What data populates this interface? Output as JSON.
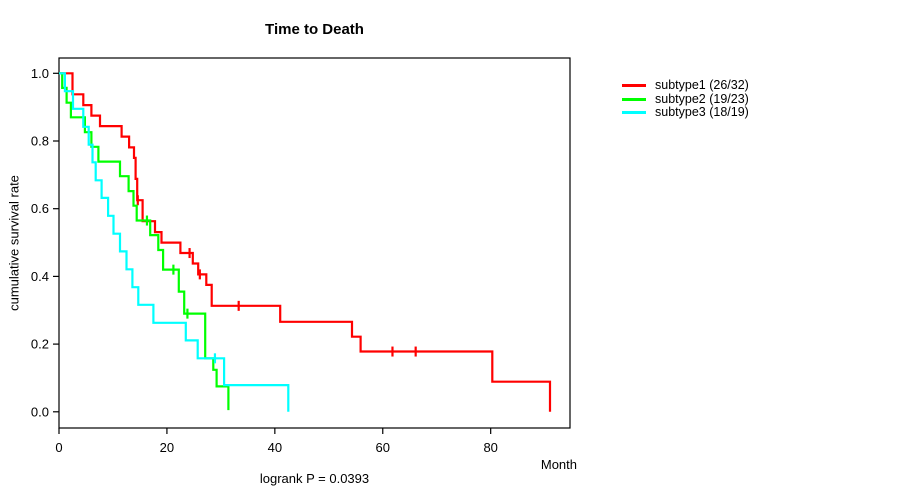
{
  "title": "Time to Death",
  "footnote": "logrank P = 0.0393",
  "axes": {
    "x": {
      "label": "Month",
      "ticks": [
        "0",
        "20",
        "40",
        "60",
        "80"
      ]
    },
    "y": {
      "label": "cumulative survival rate",
      "ticks": [
        "0.0",
        "0.2",
        "0.4",
        "0.6",
        "0.8",
        "1.0"
      ]
    }
  },
  "chart_data": {
    "type": "line",
    "subtype": "kaplan_meier_step",
    "title": "Time to Death",
    "xlabel": "Month",
    "ylabel": "cumulative survival rate",
    "annotation": "logrank P = 0.0393",
    "xlim": [
      0,
      94.7
    ],
    "ylim": [
      0,
      1.0
    ],
    "x_ticks": [
      0,
      20,
      40,
      60,
      80
    ],
    "y_ticks": [
      0.0,
      0.2,
      0.4,
      0.6,
      0.8,
      1.0
    ],
    "grid": false,
    "legend_position": "right-outside",
    "series": [
      {
        "name": "subtype1 (26/32)",
        "color": "#ff0000",
        "steps": [
          [
            0,
            1.0
          ],
          [
            2.5,
            0.938
          ],
          [
            4.5,
            0.906
          ],
          [
            6.0,
            0.875
          ],
          [
            7.6,
            0.844
          ],
          [
            11.6,
            0.813
          ],
          [
            13.0,
            0.781
          ],
          [
            13.9,
            0.75
          ],
          [
            14.2,
            0.688
          ],
          [
            14.5,
            0.625
          ],
          [
            15.5,
            0.563
          ],
          [
            17.8,
            0.531
          ],
          [
            19.0,
            0.5
          ],
          [
            22.5,
            0.469
          ],
          [
            24.8,
            0.438
          ],
          [
            25.8,
            0.406
          ],
          [
            27.3,
            0.375
          ],
          [
            28.3,
            0.313
          ],
          [
            41.0,
            0.266
          ],
          [
            54.3,
            0.222
          ],
          [
            55.9,
            0.178
          ],
          [
            80.3,
            0.089
          ],
          [
            91.0,
            0.0
          ]
        ],
        "censor_marks": [
          [
            14.6,
            0.625
          ],
          [
            24.2,
            0.469
          ],
          [
            26.1,
            0.406
          ],
          [
            33.3,
            0.313
          ],
          [
            61.8,
            0.178
          ],
          [
            66.1,
            0.178
          ]
        ]
      },
      {
        "name": "subtype2 (19/23)",
        "color": "#00ff00",
        "steps": [
          [
            0,
            1.0
          ],
          [
            0.6,
            0.957
          ],
          [
            1.4,
            0.913
          ],
          [
            2.2,
            0.87
          ],
          [
            4.8,
            0.826
          ],
          [
            6.0,
            0.783
          ],
          [
            7.3,
            0.739
          ],
          [
            11.3,
            0.696
          ],
          [
            12.9,
            0.652
          ],
          [
            13.8,
            0.609
          ],
          [
            14.4,
            0.565
          ],
          [
            16.9,
            0.522
          ],
          [
            18.4,
            0.478
          ],
          [
            19.3,
            0.42
          ],
          [
            22.2,
            0.355
          ],
          [
            23.2,
            0.29
          ],
          [
            27.1,
            0.158
          ],
          [
            28.6,
            0.124
          ],
          [
            29.2,
            0.075
          ],
          [
            31.4,
            0.005
          ]
        ],
        "censor_marks": [
          [
            16.3,
            0.565
          ],
          [
            21.2,
            0.42
          ],
          [
            23.8,
            0.29
          ]
        ]
      },
      {
        "name": "subtype3 (18/19)",
        "color": "#00ffff",
        "steps": [
          [
            0,
            1.0
          ],
          [
            1.1,
            0.947
          ],
          [
            2.6,
            0.895
          ],
          [
            4.5,
            0.842
          ],
          [
            5.5,
            0.789
          ],
          [
            6.2,
            0.737
          ],
          [
            6.8,
            0.684
          ],
          [
            7.9,
            0.632
          ],
          [
            9.1,
            0.579
          ],
          [
            10.1,
            0.526
          ],
          [
            11.3,
            0.474
          ],
          [
            12.5,
            0.421
          ],
          [
            13.6,
            0.368
          ],
          [
            14.7,
            0.316
          ],
          [
            17.5,
            0.263
          ],
          [
            23.5,
            0.211
          ],
          [
            25.7,
            0.158
          ],
          [
            30.6,
            0.079
          ],
          [
            42.5,
            0.0
          ]
        ],
        "censor_marks": [
          [
            28.9,
            0.158
          ]
        ]
      }
    ]
  }
}
